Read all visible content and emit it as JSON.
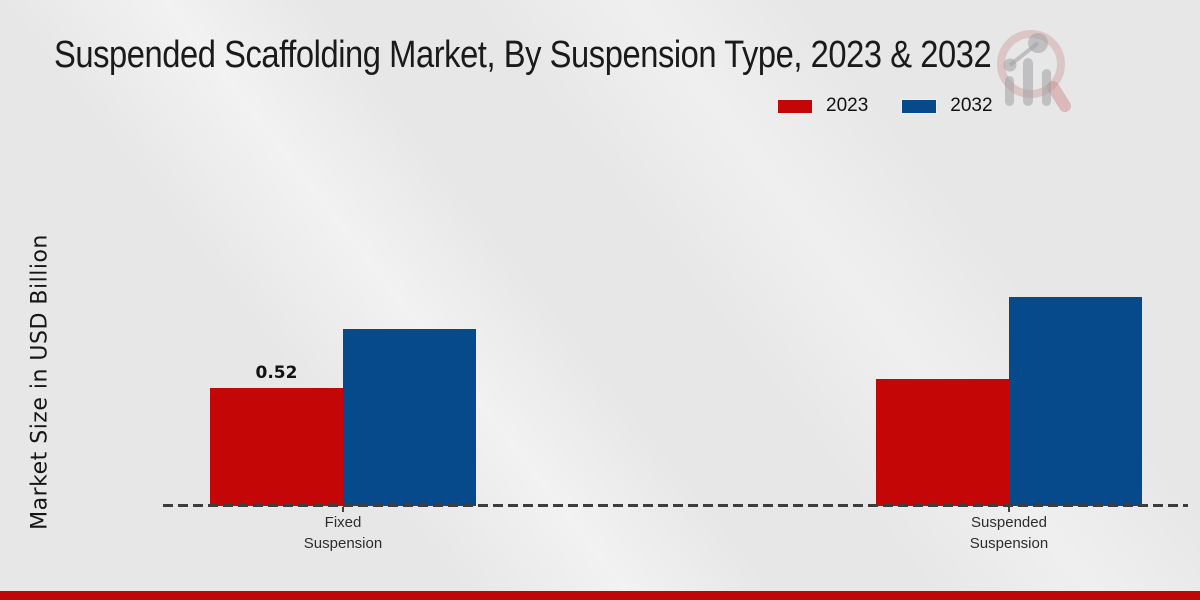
{
  "chart_data": {
    "type": "bar",
    "title": "Suspended Scaffolding Market, By Suspension Type, 2023 & 2032",
    "ylabel": "Market Size in USD Billion",
    "xlabel": "",
    "categories": [
      "Fixed Suspension",
      "Suspended Suspension"
    ],
    "series": [
      {
        "name": "2023",
        "color": "#c40606",
        "values": [
          0.52,
          0.56
        ],
        "data_labels": [
          "0.52",
          ""
        ]
      },
      {
        "name": "2032",
        "color": "#064a8c",
        "values": [
          0.78,
          0.92
        ],
        "data_labels": [
          "",
          ""
        ]
      }
    ],
    "legend": {
      "position": "top-right",
      "entries": [
        "2023",
        "2032"
      ]
    },
    "axis": {
      "baseline_style": "dashed",
      "baseline_color": "#3d3d3d",
      "y_ticks_visible": false
    },
    "ylim": [
      0,
      1.55
    ],
    "grid": false
  },
  "watermark": {
    "icon": "magnifier-bar-chart-logo"
  },
  "footer": {
    "accent_bar_color": "#c00707"
  },
  "colors": {
    "background": "#e7e7e8",
    "title_text": "#1a1a1a",
    "bar_2023": "#c40606",
    "bar_2032": "#064a8c"
  }
}
